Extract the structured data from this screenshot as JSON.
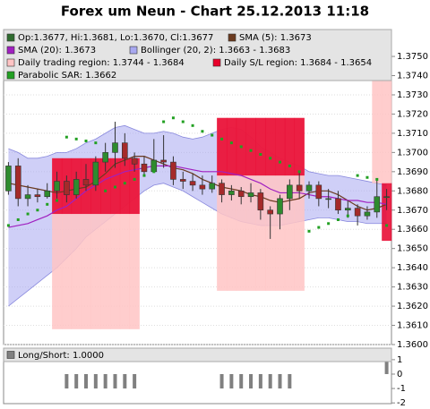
{
  "chart_data": [
    {
      "type": "candlestick",
      "title": "Forex um Neun - Chart 25.12.2013 11:18",
      "ylim": [
        1.36,
        1.3764
      ],
      "yticks": [
        {
          "value": 1.36,
          "label": "1.3600"
        },
        {
          "value": 1.361,
          "label": "1.3610"
        },
        {
          "value": 1.362,
          "label": "1.3620"
        },
        {
          "value": 1.363,
          "label": "1.3630"
        },
        {
          "value": 1.364,
          "label": "1.3640"
        },
        {
          "value": 1.365,
          "label": "1.3650"
        },
        {
          "value": 1.366,
          "label": "1.3660"
        },
        {
          "value": 1.367,
          "label": "1.3670"
        },
        {
          "value": 1.368,
          "label": "1.3680"
        },
        {
          "value": 1.369,
          "label": "1.3690"
        },
        {
          "value": 1.37,
          "label": "1.3700"
        },
        {
          "value": 1.371,
          "label": "1.3710"
        },
        {
          "value": 1.372,
          "label": "1.3720"
        },
        {
          "value": 1.373,
          "label": "1.3730"
        },
        {
          "value": 1.374,
          "label": "1.3740"
        },
        {
          "value": 1.375,
          "label": "1.3750"
        }
      ],
      "grid": true,
      "series": [
        {
          "name": "Op:1.3677, Hi:1.3681, Lo:1.3670, Cl:1.3677",
          "type": "candlestick",
          "color": "#2f6b2f",
          "up_color": "#2e8b2e",
          "down_color": "#a52a2a",
          "open": [
            1.368,
            1.3693,
            1.3676,
            1.3678,
            1.3677,
            1.368,
            1.3685,
            1.3678,
            1.3686,
            1.3683,
            1.3695,
            1.37,
            1.3705,
            1.3697,
            1.3694,
            1.369,
            1.3696,
            1.3695,
            1.3686,
            1.3685,
            1.3683,
            1.3681,
            1.3684,
            1.3678,
            1.368,
            1.3677,
            1.3679,
            1.367,
            1.3668,
            1.3676,
            1.3683,
            1.368,
            1.3683,
            1.3676,
            1.3676,
            1.367,
            1.3671,
            1.3667,
            1.3669,
            1.3677
          ],
          "high": [
            1.3695,
            1.3697,
            1.3683,
            1.3681,
            1.3684,
            1.369,
            1.3688,
            1.369,
            1.3694,
            1.3698,
            1.3705,
            1.3716,
            1.371,
            1.37,
            1.3698,
            1.3707,
            1.3709,
            1.3698,
            1.369,
            1.3689,
            1.3688,
            1.3688,
            1.3686,
            1.3683,
            1.3682,
            1.3684,
            1.3681,
            1.3672,
            1.3678,
            1.3686,
            1.369,
            1.3685,
            1.3685,
            1.3681,
            1.368,
            1.3675,
            1.3673,
            1.3672,
            1.3686,
            1.3681
          ],
          "low": [
            1.3678,
            1.3672,
            1.3672,
            1.3674,
            1.3676,
            1.3676,
            1.3674,
            1.3676,
            1.368,
            1.368,
            1.369,
            1.3692,
            1.3693,
            1.369,
            1.3688,
            1.369,
            1.3692,
            1.3683,
            1.3681,
            1.368,
            1.3678,
            1.3679,
            1.3674,
            1.3675,
            1.3673,
            1.3674,
            1.3665,
            1.3655,
            1.366,
            1.367,
            1.3676,
            1.3676,
            1.3672,
            1.3671,
            1.3668,
            1.3666,
            1.3662,
            1.3665,
            1.3666,
            1.367
          ],
          "close": [
            1.3693,
            1.3676,
            1.3678,
            1.3677,
            1.368,
            1.3685,
            1.3678,
            1.3686,
            1.3683,
            1.3695,
            1.37,
            1.3705,
            1.3697,
            1.3694,
            1.369,
            1.3696,
            1.3695,
            1.3686,
            1.3685,
            1.3683,
            1.3681,
            1.3684,
            1.3678,
            1.368,
            1.3677,
            1.3679,
            1.367,
            1.3668,
            1.3676,
            1.3683,
            1.368,
            1.3683,
            1.3676,
            1.3676,
            1.367,
            1.3671,
            1.3667,
            1.3669,
            1.3677,
            1.3677
          ]
        },
        {
          "name": "SMA (5): 1.3673",
          "type": "line",
          "color": "#6b3a1f",
          "values": [
            1.3684,
            1.3683,
            1.3682,
            1.3681,
            1.368,
            1.3679,
            1.368,
            1.3681,
            1.3682,
            1.3685,
            1.3689,
            1.3694,
            1.3696,
            1.3698,
            1.3698,
            1.3696,
            1.3694,
            1.3692,
            1.3691,
            1.3689,
            1.3686,
            1.3684,
            1.3682,
            1.3681,
            1.368,
            1.3678,
            1.3677,
            1.3675,
            1.3674,
            1.3675,
            1.3676,
            1.3679,
            1.368,
            1.368,
            1.3678,
            1.3675,
            1.3672,
            1.367,
            1.3671,
            1.3673
          ]
        },
        {
          "name": "SMA (20): 1.3673",
          "type": "line",
          "color": "#a020c0",
          "values": [
            1.3661,
            1.3662,
            1.3663,
            1.3665,
            1.3667,
            1.367,
            1.3672,
            1.3676,
            1.368,
            1.3683,
            1.3686,
            1.3688,
            1.369,
            1.3691,
            1.3692,
            1.3693,
            1.3693,
            1.3693,
            1.3692,
            1.3691,
            1.369,
            1.369,
            1.369,
            1.3689,
            1.3688,
            1.3686,
            1.3684,
            1.3681,
            1.3679,
            1.3679,
            1.3679,
            1.3678,
            1.3677,
            1.3677,
            1.3676,
            1.3675,
            1.3675,
            1.3674,
            1.3674,
            1.3673
          ]
        },
        {
          "name": "Bollinger (20, 2): 1.3663 - 1.3683",
          "type": "band",
          "color": "#a8a8f0",
          "upper": [
            1.3702,
            1.37,
            1.3697,
            1.3697,
            1.3698,
            1.37,
            1.37,
            1.3702,
            1.3705,
            1.3707,
            1.371,
            1.3713,
            1.3714,
            1.3712,
            1.371,
            1.371,
            1.3711,
            1.371,
            1.3708,
            1.3707,
            1.3708,
            1.371,
            1.3712,
            1.3713,
            1.3712,
            1.3708,
            1.3703,
            1.37,
            1.3697,
            1.3695,
            1.3693,
            1.369,
            1.3689,
            1.3688,
            1.3688,
            1.3687,
            1.3686,
            1.3685,
            1.3684,
            1.3683
          ],
          "lower": [
            1.362,
            1.3624,
            1.3628,
            1.3632,
            1.3636,
            1.364,
            1.3645,
            1.365,
            1.3656,
            1.366,
            1.3664,
            1.3668,
            1.3672,
            1.3676,
            1.368,
            1.3683,
            1.3684,
            1.3682,
            1.368,
            1.3677,
            1.3674,
            1.3671,
            1.3668,
            1.3666,
            1.3664,
            1.3663,
            1.3662,
            1.3662,
            1.3662,
            1.3663,
            1.3664,
            1.3665,
            1.3666,
            1.3666,
            1.3665,
            1.3664,
            1.3664,
            1.3663,
            1.3663,
            1.3663
          ]
        },
        {
          "name": "Daily trading region: 1.3744 - 1.3684",
          "type": "region",
          "color": "#ffc4c4",
          "high": [
            null,
            null,
            null,
            null,
            null,
            1.3697,
            1.3697,
            1.3697,
            1.3697,
            1.3697,
            1.3697,
            1.3697,
            1.3697,
            1.3697,
            null,
            null,
            null,
            null,
            null,
            null,
            null,
            null,
            1.3718,
            1.3718,
            1.3718,
            1.3718,
            1.3718,
            1.3718,
            1.3718,
            1.3718,
            1.3718,
            null,
            null,
            null,
            null,
            null,
            null,
            null,
            1.3744,
            1.3744
          ],
          "low": [
            null,
            null,
            null,
            null,
            null,
            1.3608,
            1.3608,
            1.3608,
            1.3608,
            1.3608,
            1.3608,
            1.3608,
            1.3608,
            1.3608,
            null,
            null,
            null,
            null,
            null,
            null,
            null,
            null,
            1.3628,
            1.3628,
            1.3628,
            1.3628,
            1.3628,
            1.3628,
            1.3628,
            1.3628,
            1.3628,
            null,
            null,
            null,
            null,
            null,
            null,
            null,
            1.3684,
            1.3684
          ]
        },
        {
          "name": "Daily S/L region: 1.3684 - 1.3654",
          "type": "region",
          "color": "#e8002a",
          "high": [
            null,
            null,
            null,
            null,
            null,
            1.3697,
            1.3697,
            1.3697,
            1.3697,
            1.3697,
            1.3697,
            1.3697,
            1.3697,
            1.3697,
            null,
            null,
            null,
            null,
            null,
            null,
            null,
            null,
            1.3718,
            1.3718,
            1.3718,
            1.3718,
            1.3718,
            1.3718,
            1.3718,
            1.3718,
            1.3718,
            null,
            null,
            null,
            null,
            null,
            null,
            null,
            null,
            1.3684
          ],
          "low": [
            null,
            null,
            null,
            null,
            null,
            1.3668,
            1.3668,
            1.3668,
            1.3668,
            1.3668,
            1.3668,
            1.3668,
            1.3668,
            1.3668,
            null,
            null,
            null,
            null,
            null,
            null,
            null,
            null,
            1.3688,
            1.3688,
            1.3688,
            1.3688,
            1.3688,
            1.3688,
            1.3688,
            1.3688,
            1.3688,
            null,
            null,
            null,
            null,
            null,
            null,
            null,
            null,
            1.3654
          ]
        },
        {
          "name": "Parabolic SAR: 1.3662",
          "type": "dots",
          "color": "#22a022",
          "values": [
            1.3662,
            1.3665,
            1.3668,
            1.367,
            1.3673,
            1.3675,
            1.3708,
            1.3707,
            1.3706,
            1.3705,
            1.368,
            1.3682,
            1.3684,
            1.3686,
            1.3688,
            1.369,
            1.3716,
            1.3718,
            1.3716,
            1.3714,
            1.3711,
            1.3709,
            1.3707,
            1.3705,
            1.3703,
            1.3701,
            1.3699,
            1.3697,
            1.3695,
            1.3693,
            1.369,
            1.3659,
            1.3661,
            1.3663,
            1.3665,
            1.3667,
            1.3688,
            1.3687,
            1.3686,
            1.3662
          ]
        }
      ]
    },
    {
      "type": "bar",
      "ylim": [
        -2.05,
        1.8
      ],
      "yticks": [
        1,
        0,
        -1,
        -2
      ],
      "series": [
        {
          "name": "Long/Short: 1.0000",
          "color": "#808080",
          "values": [
            0,
            0,
            0,
            0,
            0,
            0,
            -1,
            -1,
            -1,
            -1,
            -1,
            -1,
            -1,
            -1,
            0,
            0,
            0,
            0,
            0,
            0,
            0,
            0,
            -1,
            -1,
            -1,
            -1,
            -1,
            -1,
            -1,
            -1,
            0,
            0,
            0,
            0,
            0,
            0,
            0,
            0,
            0,
            1
          ]
        }
      ]
    }
  ]
}
